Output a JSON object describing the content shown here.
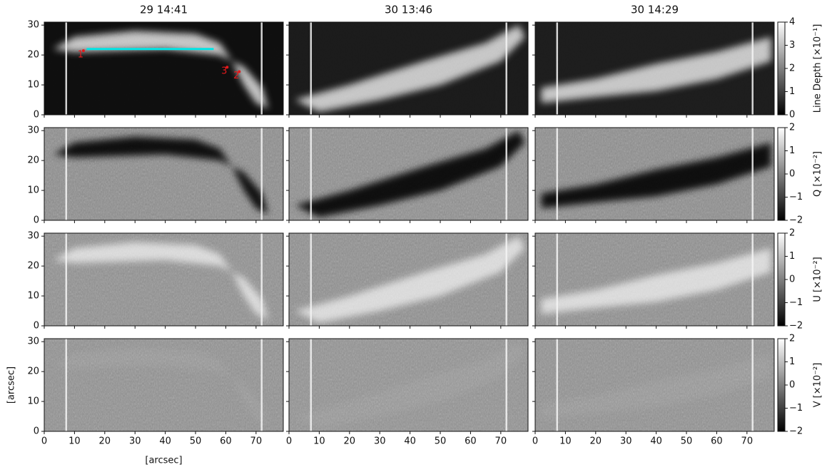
{
  "chart_data": {
    "type": "image",
    "columns": [
      "29 14:41",
      "30 13:46",
      "30 14:29"
    ],
    "xlabel": "[arcsec]",
    "ylabel": "[arcsec]",
    "xlim": [
      0,
      79
    ],
    "xticks": [
      0,
      10,
      20,
      30,
      40,
      50,
      60,
      70
    ],
    "ylim": [
      0,
      31
    ],
    "yticks": [
      0,
      10,
      20,
      30
    ],
    "colormap": "gray",
    "rows": [
      {
        "label": "Line Depth [×10⁻¹]",
        "clim": [
          0,
          4
        ],
        "ticks": [
          0,
          1,
          2,
          3,
          4
        ]
      },
      {
        "label": "Q [×10⁻²]",
        "clim": [
          -2,
          2
        ],
        "ticks": [
          {
            "value": -2,
            "label": "−2"
          },
          {
            "value": -1,
            "label": "−1"
          },
          0,
          1,
          2
        ]
      },
      {
        "label": "U [×10⁻²]",
        "clim": [
          -2,
          2
        ],
        "ticks": [
          {
            "value": -2,
            "label": "−2"
          },
          {
            "value": -1,
            "label": "−1"
          },
          0,
          1,
          2
        ]
      },
      {
        "label": "V [×10⁻²]",
        "clim": [
          -2,
          2
        ],
        "ticks": [
          {
            "value": -2,
            "label": "−2"
          },
          {
            "value": -1,
            "label": "−1"
          },
          0,
          1,
          2
        ]
      }
    ],
    "annotations": [
      {
        "text": "1",
        "x": 12,
        "y": 20
      },
      {
        "text": "3",
        "x": 59.5,
        "y": 14.5
      },
      {
        "text": "2",
        "x": 63.5,
        "y": 13
      }
    ],
    "annotation_color": "#e31a1c",
    "slit": {
      "x": [
        14,
        56
      ],
      "y": [
        22,
        22
      ],
      "color": "#00e5e5"
    }
  }
}
